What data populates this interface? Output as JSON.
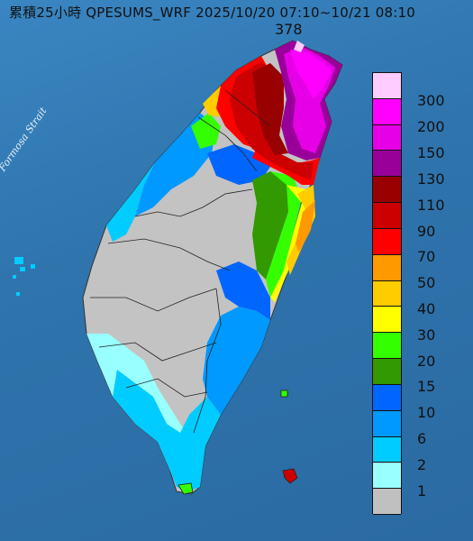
{
  "map": {
    "title": "累積25小時 QPESUMS_WRF 2025/10/20 07:10~10/21 08:10",
    "max_value": "378",
    "water_label": "Formosa Strait"
  },
  "legend": [
    {
      "label": "300",
      "color": "#ffccff"
    },
    {
      "label": "200",
      "color": "#ff00ff"
    },
    {
      "label": "150",
      "color": "#e600e6"
    },
    {
      "label": "130",
      "color": "#990099"
    },
    {
      "label": "110",
      "color": "#990000"
    },
    {
      "label": "90",
      "color": "#cc0000"
    },
    {
      "label": "70",
      "color": "#ff0000"
    },
    {
      "label": "50",
      "color": "#ff9900"
    },
    {
      "label": "40",
      "color": "#ffcc00"
    },
    {
      "label": "30",
      "color": "#ffff00"
    },
    {
      "label": "20",
      "color": "#33ff00"
    },
    {
      "label": "15",
      "color": "#339900"
    },
    {
      "label": "10",
      "color": "#0066ff"
    },
    {
      "label": "6",
      "color": "#0099ff"
    },
    {
      "label": "2",
      "color": "#00ccff"
    },
    {
      "label": "1",
      "color": "#99ffff"
    },
    {
      "label": "",
      "color": "#c0c0c0"
    }
  ]
}
